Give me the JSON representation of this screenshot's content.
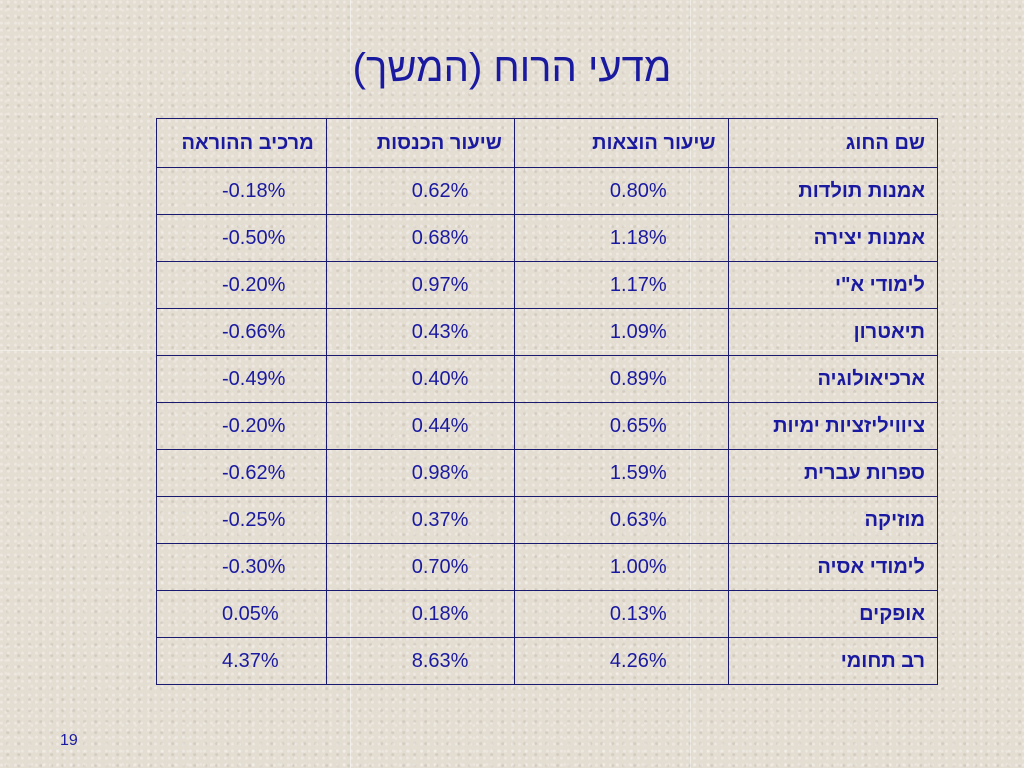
{
  "slide": {
    "title": "מדעי הרוח (המשך)",
    "page_number": "19"
  },
  "table": {
    "headers": [
      "שם החוג",
      "שיעור הוצאות",
      "שיעור הכנסות",
      "מרכיב ההוראה"
    ],
    "rows": [
      [
        "אמנות תולדות",
        "0.80%",
        "0.62%",
        "-0.18%"
      ],
      [
        "אמנות יצירה",
        "1.18%",
        "0.68%",
        "-0.50%"
      ],
      [
        "לימודי א\"י",
        "1.17%",
        "0.97%",
        "-0.20%"
      ],
      [
        "תיאטרון",
        "1.09%",
        "0.43%",
        "-0.66%"
      ],
      [
        "ארכיאולוגיה",
        "0.89%",
        "0.40%",
        "-0.49%"
      ],
      [
        "ציוויליזציות ימיות",
        "0.65%",
        "0.44%",
        "-0.20%"
      ],
      [
        "ספרות עברית",
        "1.59%",
        "0.98%",
        "-0.62%"
      ],
      [
        "מוזיקה",
        "0.63%",
        "0.37%",
        "-0.25%"
      ],
      [
        "לימודי אסיה",
        "1.00%",
        "0.70%",
        "-0.30%"
      ],
      [
        "אופקים",
        "0.13%",
        "0.18%",
        "0.05%"
      ],
      [
        "רב תחומי",
        "4.26%",
        "8.63%",
        "4.37%"
      ]
    ]
  }
}
